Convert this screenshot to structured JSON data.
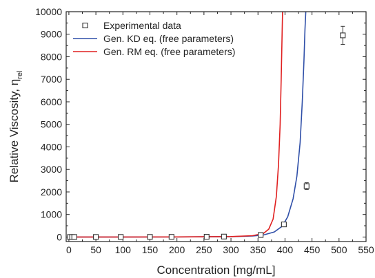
{
  "chart_data": {
    "type": "scatter",
    "xlabel": "Concentration [mg/mL]",
    "ylabel": "Relative Viscosity, η",
    "ylabel_sub": "rel",
    "xlim": [
      -5,
      550
    ],
    "ylim": [
      -200,
      10000
    ],
    "xticks": [
      "0",
      "50",
      "100",
      "150",
      "200",
      "250",
      "300",
      "350",
      "400",
      "450",
      "500",
      "550"
    ],
    "yticks": [
      "0",
      "1000",
      "2000",
      "3000",
      "4000",
      "5000",
      "6000",
      "7000",
      "8000",
      "9000",
      "10000"
    ],
    "legend_position": "top-left",
    "series": [
      {
        "name": "Experimental data",
        "kind": "points",
        "color": "#333333",
        "marker": "open-square",
        "x": [
          2,
          6,
          10,
          50,
          96,
          150,
          190,
          255,
          287,
          355,
          398,
          440,
          507
        ],
        "y": [
          1,
          1,
          2,
          3,
          4,
          5,
          7,
          12,
          20,
          90,
          560,
          2260,
          8950
        ],
        "yerr": [
          0,
          0,
          0,
          0,
          0,
          0,
          0,
          0,
          0,
          0,
          0,
          150,
          400
        ]
      },
      {
        "name": "Gen. KD eq. (free parameters)",
        "kind": "line",
        "color": "#2f4fa8",
        "x": [
          0,
          100,
          200,
          300,
          340,
          360,
          380,
          395,
          405,
          415,
          422,
          428,
          432,
          435,
          437,
          438.5
        ],
        "y": [
          1,
          2,
          5,
          18,
          45,
          90,
          220,
          480,
          900,
          1700,
          2700,
          4200,
          6000,
          7800,
          9200,
          10000
        ]
      },
      {
        "name": "Gen. RM eq. (free parameters)",
        "kind": "line",
        "color": "#e02020",
        "x": [
          0,
          100,
          200,
          300,
          340,
          360,
          370,
          378,
          384,
          388,
          391,
          393,
          394.5,
          395.5
        ],
        "y": [
          1,
          2,
          5,
          20,
          60,
          160,
          350,
          800,
          1800,
          3200,
          5000,
          7000,
          8800,
          10000
        ]
      }
    ]
  }
}
